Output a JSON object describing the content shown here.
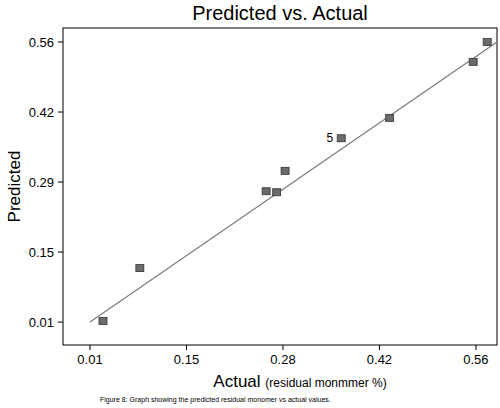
{
  "chart_data": {
    "type": "scatter",
    "title": "Predicted vs. Actual",
    "xlabel": "Actual (residual monmmer %)",
    "ylabel": "Predicted",
    "caption": "Figure 8: Graph showing the predicted residual monomer vs actual values.",
    "xlim": [
      -0.0285,
      0.59
    ],
    "ylim": [
      -0.035,
      0.5875
    ],
    "xticks": [
      0.01,
      {
        "value": 0.1475,
        "label": "0.15"
      },
      {
        "value": 0.285,
        "label": "0.28"
      },
      {
        "value": 0.4225,
        "label": "0.42"
      },
      0.56
    ],
    "yticks": [
      0.01,
      {
        "value": 0.1475,
        "label": "0.15"
      },
      {
        "value": 0.285,
        "label": "0.29"
      },
      {
        "value": 0.4225,
        "label": "0.42"
      },
      0.56
    ],
    "grid": false,
    "series": [
      {
        "type": "scatter",
        "marker": "square",
        "color": "#6b6b6b",
        "x": [
          0.0285,
          0.081,
          0.261,
          0.276,
          0.288,
          0.368,
          0.437,
          0.556,
          0.576
        ],
        "values": [
          0.012,
          0.116,
          0.267,
          0.265,
          0.307,
          0.371,
          0.411,
          0.521,
          0.56
        ]
      },
      {
        "type": "line",
        "line_style": "solid",
        "color": "#7a7a7a",
        "x": [
          0.01,
          0.59
        ],
        "values": [
          0.01,
          0.56
        ]
      }
    ],
    "annotations": [
      {
        "text": "5",
        "x": 0.368,
        "y": 0.371
      }
    ]
  }
}
